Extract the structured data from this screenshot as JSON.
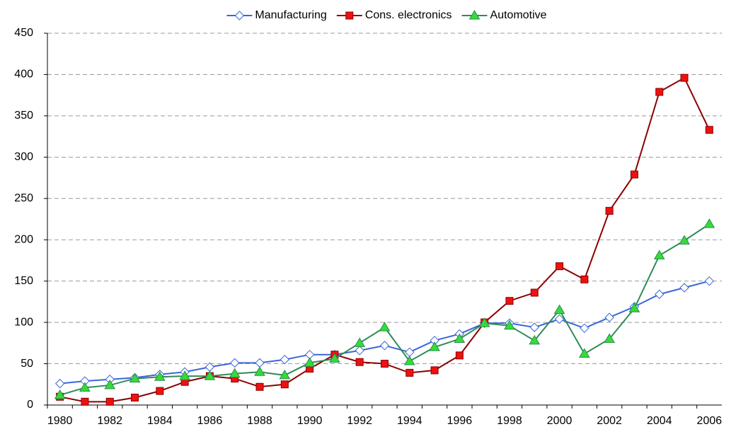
{
  "chart_data": {
    "type": "line",
    "categories": [
      "1980",
      null,
      "1982",
      null,
      "1984",
      null,
      "1986",
      null,
      "1988",
      null,
      "1990",
      null,
      "1992",
      null,
      "1994",
      null,
      "1996",
      null,
      "1998",
      null,
      "2000",
      null,
      "2002",
      null,
      "2004",
      null,
      "2006"
    ],
    "series": [
      {
        "name": "Manufacturing",
        "color": "#3a66d8",
        "marker": "diamond",
        "marker_color": "#ffffff",
        "values": [
          26,
          29,
          31,
          33,
          37,
          40,
          46,
          51,
          51,
          55,
          61,
          61,
          66,
          72,
          64,
          78,
          86,
          99,
          99,
          94,
          104,
          93,
          106,
          119,
          134,
          142,
          150
        ]
      },
      {
        "name": "Cons. electronics",
        "color": "#8b0000",
        "marker": "square",
        "marker_color": "#ee1111",
        "values": [
          10,
          4,
          4,
          9,
          17,
          28,
          35,
          32,
          22,
          25,
          44,
          61,
          52,
          50,
          39,
          42,
          60,
          100,
          126,
          136,
          168,
          152,
          235,
          279,
          379,
          396,
          333
        ]
      },
      {
        "name": "Automotive",
        "color": "#2e8b57",
        "marker": "triangle",
        "marker_color": "#33dd33",
        "values": [
          12,
          21,
          24,
          32,
          34,
          35,
          35,
          38,
          40,
          36,
          51,
          56,
          75,
          94,
          53,
          70,
          80,
          99,
          96,
          78,
          115,
          62,
          80,
          117,
          181,
          199,
          219
        ]
      }
    ],
    "ylim": [
      0,
      450
    ],
    "yticks": [
      0,
      50,
      100,
      150,
      200,
      250,
      300,
      350,
      400,
      450
    ],
    "grid": true,
    "legend": "top"
  }
}
